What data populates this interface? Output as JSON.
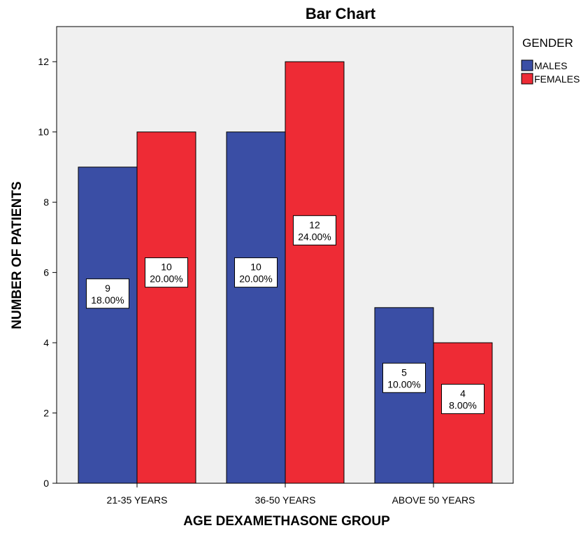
{
  "chart_data": {
    "type": "bar",
    "title": "Bar Chart",
    "xlabel": "AGE DEXAMETHASONE  GROUP",
    "ylabel": "NUMBER OF PATIENTS",
    "categories": [
      "21-35 YEARS",
      "36-50 YEARS",
      "ABOVE 50 YEARS"
    ],
    "series": [
      {
        "name": "MALES",
        "color": "#3a4ea5",
        "values": [
          9,
          10,
          5
        ],
        "labels": [
          [
            "9",
            "18.00%"
          ],
          [
            "10",
            "20.00%"
          ],
          [
            "5",
            "10.00%"
          ]
        ]
      },
      {
        "name": "FEMALES",
        "color": "#ee2b35",
        "values": [
          10,
          12,
          4
        ],
        "labels": [
          [
            "10",
            "20.00%"
          ],
          [
            "12",
            "24.00%"
          ],
          [
            "4",
            "8.00%"
          ]
        ]
      }
    ],
    "ylim": [
      0,
      13
    ],
    "yticks": [
      "0",
      "2",
      "4",
      "6",
      "8",
      "10",
      "12"
    ],
    "legend": {
      "title": "GENDER",
      "placement": "right"
    },
    "plot_background": "#f0f0f0",
    "grid": false
  }
}
